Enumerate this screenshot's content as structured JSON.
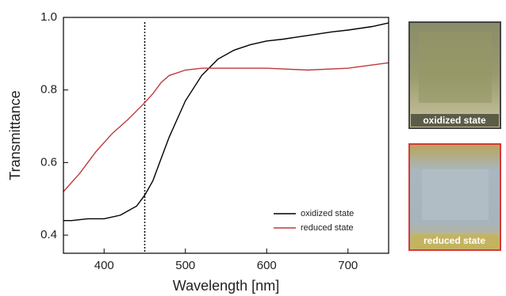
{
  "chart_data": {
    "type": "line",
    "xlabel": "Wavelength [nm]",
    "ylabel": "Transmittance",
    "xlim": [
      350,
      750
    ],
    "xticks": [
      400,
      500,
      600,
      700
    ],
    "ylim": [
      0.35,
      1.0
    ],
    "yticks": [
      0.4,
      0.6,
      0.8,
      {
        "value": 1,
        "label": "1.0"
      }
    ],
    "vline": 450,
    "legend": "lower right",
    "series": [
      {
        "name": "oxidized state",
        "color": "#000000",
        "x": [
          350,
          360,
          380,
          400,
          420,
          440,
          450,
          460,
          470,
          480,
          490,
          500,
          520,
          540,
          560,
          580,
          600,
          620,
          650,
          680,
          700,
          730,
          750
        ],
        "values": [
          0.44,
          0.44,
          0.445,
          0.445,
          0.455,
          0.48,
          0.51,
          0.55,
          0.61,
          0.67,
          0.72,
          0.77,
          0.84,
          0.885,
          0.91,
          0.925,
          0.935,
          0.94,
          0.95,
          0.96,
          0.965,
          0.975,
          0.985
        ]
      },
      {
        "name": "reduced state",
        "color": "#c0393b",
        "x": [
          350,
          370,
          390,
          410,
          430,
          450,
          460,
          470,
          480,
          500,
          520,
          550,
          600,
          650,
          700,
          750
        ],
        "values": [
          0.52,
          0.57,
          0.63,
          0.68,
          0.72,
          0.765,
          0.79,
          0.82,
          0.84,
          0.855,
          0.86,
          0.86,
          0.86,
          0.855,
          0.86,
          0.875
        ]
      }
    ]
  },
  "photos": [
    {
      "label": "oxidized state"
    },
    {
      "label": "reduced state"
    }
  ]
}
